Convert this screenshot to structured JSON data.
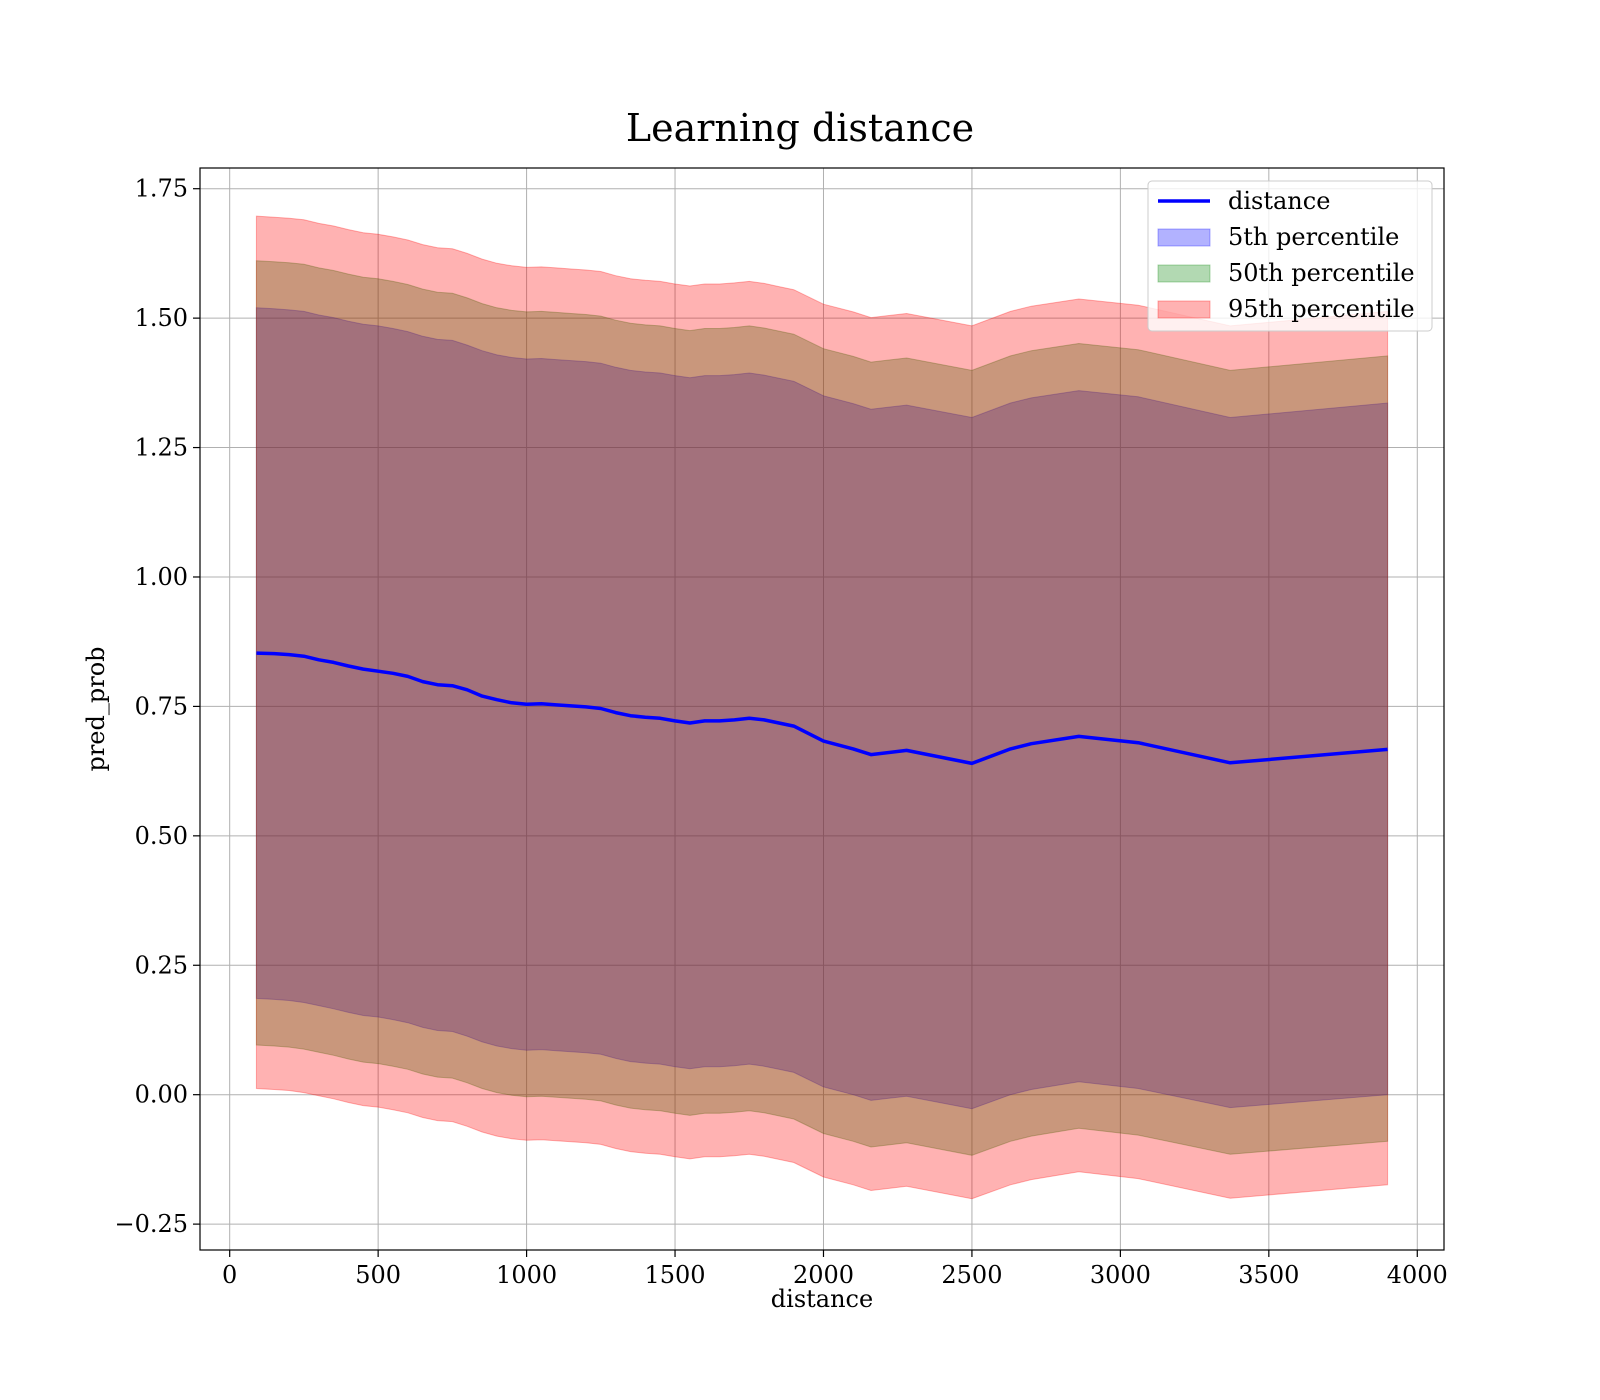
{
  "chart_data": {
    "type": "area",
    "title": "Learning distance",
    "xlabel": "distance",
    "ylabel": "pred_prob",
    "xlim": [
      -100,
      4090
    ],
    "ylim": [
      -0.3,
      1.79
    ],
    "xticks": [
      0,
      500,
      1000,
      1500,
      2000,
      2500,
      3000,
      3500,
      4000
    ],
    "xtick_labels": [
      "0",
      "500",
      "1000",
      "1500",
      "2000",
      "2500",
      "3000",
      "3500",
      "4000"
    ],
    "yticks": [
      -0.25,
      0.0,
      0.25,
      0.5,
      0.75,
      1.0,
      1.25,
      1.5,
      1.75
    ],
    "ytick_labels": [
      "−0.25",
      "0.00",
      "0.25",
      "0.50",
      "0.75",
      "1.00",
      "1.25",
      "1.50",
      "1.75"
    ],
    "grid": true,
    "legend_position": "top-right",
    "x": [
      90,
      150,
      200,
      250,
      300,
      350,
      400,
      450,
      500,
      550,
      600,
      650,
      700,
      750,
      800,
      850,
      900,
      950,
      1000,
      1050,
      1100,
      1150,
      1200,
      1250,
      1300,
      1350,
      1400,
      1450,
      1500,
      1550,
      1600,
      1650,
      1700,
      1750,
      1800,
      1850,
      1900,
      2000,
      2100,
      2160,
      2280,
      2500,
      2630,
      2700,
      2860,
      3060,
      3370,
      3900
    ],
    "series": [
      {
        "name": "distance",
        "kind": "line",
        "color": "#0000ff",
        "values": [
          0.853,
          0.852,
          0.85,
          0.847,
          0.84,
          0.835,
          0.828,
          0.822,
          0.818,
          0.814,
          0.808,
          0.798,
          0.792,
          0.79,
          0.782,
          0.77,
          0.763,
          0.757,
          0.754,
          0.755,
          0.753,
          0.751,
          0.749,
          0.746,
          0.738,
          0.732,
          0.729,
          0.727,
          0.722,
          0.718,
          0.722,
          0.722,
          0.724,
          0.727,
          0.724,
          0.718,
          0.712,
          0.683,
          0.668,
          0.657,
          0.665,
          0.64,
          0.668,
          0.678,
          0.692,
          0.68,
          0.641,
          0.667
        ]
      },
      {
        "name": "5th percentile",
        "kind": "band",
        "color": "#0000ff",
        "opacity": 0.3,
        "lower": [
          0.186,
          0.184,
          0.182,
          0.178,
          0.172,
          0.166,
          0.159,
          0.153,
          0.15,
          0.145,
          0.139,
          0.13,
          0.124,
          0.122,
          0.113,
          0.102,
          0.094,
          0.089,
          0.086,
          0.087,
          0.085,
          0.083,
          0.081,
          0.078,
          0.07,
          0.064,
          0.061,
          0.059,
          0.054,
          0.05,
          0.054,
          0.054,
          0.056,
          0.059,
          0.055,
          0.049,
          0.043,
          0.015,
          0.0,
          -0.011,
          -0.003,
          -0.027,
          0.0,
          0.01,
          0.025,
          0.012,
          -0.025,
          0.0
        ],
        "upper": [
          1.52,
          1.518,
          1.516,
          1.513,
          1.506,
          1.501,
          1.494,
          1.488,
          1.485,
          1.48,
          1.474,
          1.465,
          1.459,
          1.457,
          1.448,
          1.437,
          1.429,
          1.424,
          1.421,
          1.422,
          1.42,
          1.418,
          1.416,
          1.413,
          1.405,
          1.399,
          1.396,
          1.394,
          1.389,
          1.385,
          1.389,
          1.389,
          1.391,
          1.394,
          1.39,
          1.384,
          1.378,
          1.35,
          1.335,
          1.324,
          1.332,
          1.308,
          1.336,
          1.346,
          1.36,
          1.348,
          1.308,
          1.336
        ]
      },
      {
        "name": "50th percentile",
        "kind": "band",
        "color": "#008000",
        "opacity": 0.3,
        "lower": [
          0.096,
          0.094,
          0.092,
          0.088,
          0.082,
          0.076,
          0.069,
          0.063,
          0.06,
          0.055,
          0.049,
          0.04,
          0.034,
          0.032,
          0.023,
          0.012,
          0.004,
          -0.001,
          -0.004,
          -0.003,
          -0.005,
          -0.007,
          -0.009,
          -0.012,
          -0.02,
          -0.026,
          -0.029,
          -0.031,
          -0.036,
          -0.04,
          -0.036,
          -0.036,
          -0.034,
          -0.031,
          -0.035,
          -0.041,
          -0.047,
          -0.075,
          -0.09,
          -0.101,
          -0.093,
          -0.117,
          -0.09,
          -0.08,
          -0.065,
          -0.078,
          -0.115,
          -0.09
        ],
        "upper": [
          1.611,
          1.609,
          1.607,
          1.604,
          1.597,
          1.592,
          1.585,
          1.579,
          1.576,
          1.571,
          1.565,
          1.556,
          1.55,
          1.548,
          1.539,
          1.528,
          1.52,
          1.515,
          1.512,
          1.513,
          1.511,
          1.509,
          1.507,
          1.504,
          1.496,
          1.49,
          1.487,
          1.485,
          1.48,
          1.476,
          1.48,
          1.48,
          1.482,
          1.485,
          1.481,
          1.475,
          1.469,
          1.441,
          1.426,
          1.415,
          1.423,
          1.399,
          1.427,
          1.437,
          1.451,
          1.439,
          1.399,
          1.427
        ]
      },
      {
        "name": "95th percentile",
        "kind": "band",
        "color": "#ff0000",
        "opacity": 0.3,
        "lower": [
          0.012,
          0.01,
          0.008,
          0.004,
          -0.002,
          -0.008,
          -0.015,
          -0.021,
          -0.024,
          -0.029,
          -0.035,
          -0.044,
          -0.05,
          -0.052,
          -0.061,
          -0.072,
          -0.08,
          -0.085,
          -0.088,
          -0.087,
          -0.089,
          -0.091,
          -0.093,
          -0.096,
          -0.104,
          -0.11,
          -0.113,
          -0.115,
          -0.12,
          -0.124,
          -0.12,
          -0.12,
          -0.118,
          -0.115,
          -0.119,
          -0.125,
          -0.131,
          -0.159,
          -0.174,
          -0.185,
          -0.177,
          -0.201,
          -0.174,
          -0.164,
          -0.149,
          -0.162,
          -0.2,
          -0.174
        ],
        "upper": [
          1.697,
          1.695,
          1.693,
          1.69,
          1.683,
          1.678,
          1.671,
          1.665,
          1.662,
          1.657,
          1.651,
          1.642,
          1.636,
          1.634,
          1.625,
          1.614,
          1.606,
          1.601,
          1.598,
          1.599,
          1.597,
          1.595,
          1.593,
          1.59,
          1.582,
          1.576,
          1.573,
          1.571,
          1.566,
          1.562,
          1.566,
          1.566,
          1.568,
          1.571,
          1.567,
          1.561,
          1.555,
          1.527,
          1.512,
          1.501,
          1.509,
          1.485,
          1.513,
          1.523,
          1.537,
          1.525,
          1.485,
          1.513
        ]
      }
    ]
  }
}
